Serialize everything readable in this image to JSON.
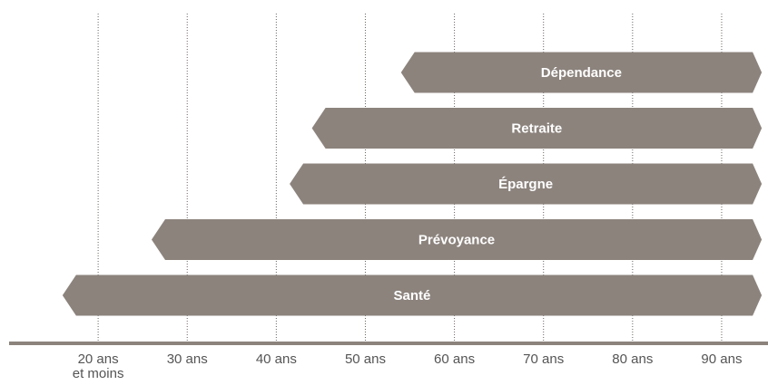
{
  "chart_data": {
    "type": "range-bar",
    "categories": [
      "Dépendance",
      "Retraite",
      "Épargne",
      "Prévoyance",
      "Santé"
    ],
    "values": [
      [
        54,
        94.5
      ],
      [
        44,
        94.5
      ],
      [
        41.5,
        94.5
      ],
      [
        26,
        94.5
      ],
      [
        16,
        94.5
      ]
    ],
    "color": "#8c837d",
    "xlim": [
      10,
      95
    ],
    "xticks": [
      {
        "value": 20,
        "label": "20 ans et moins"
      },
      {
        "value": 30,
        "label": "30 ans"
      },
      {
        "value": 40,
        "label": "40 ans"
      },
      {
        "value": 50,
        "label": "50 ans"
      },
      {
        "value": 60,
        "label": "60 ans"
      },
      {
        "value": 70,
        "label": "70 ans"
      },
      {
        "value": 80,
        "label": "80 ans"
      },
      {
        "value": 90,
        "label": "90 ans"
      }
    ],
    "grid": true
  }
}
